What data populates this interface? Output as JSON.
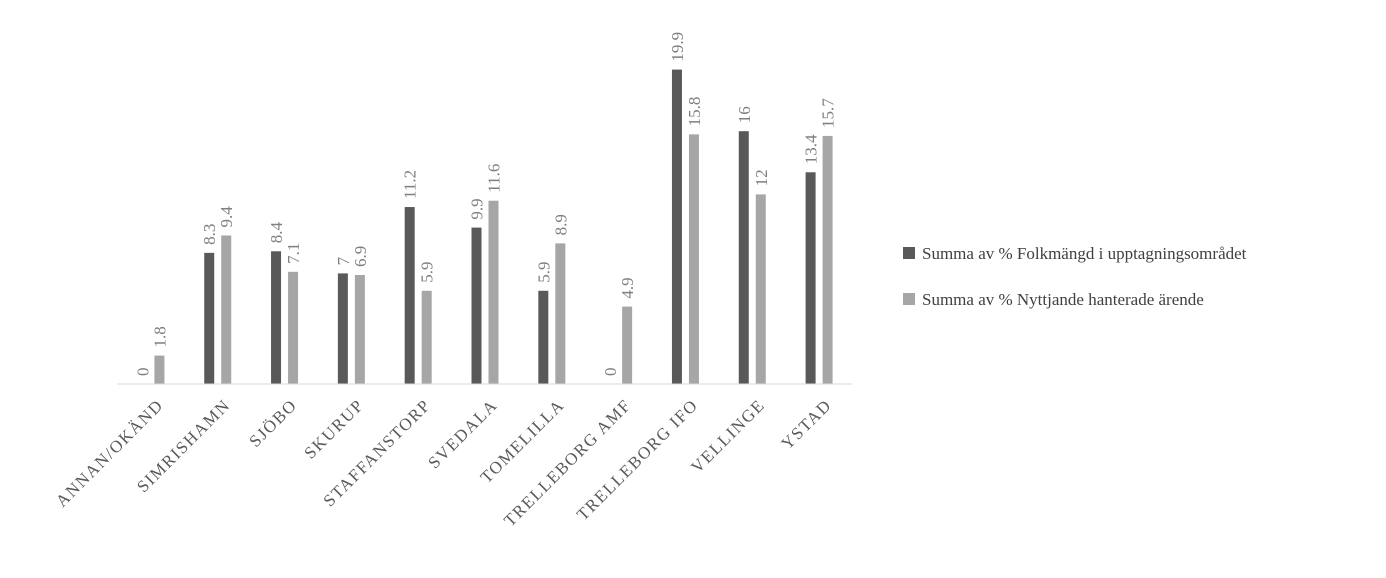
{
  "chart_data": {
    "type": "bar",
    "title": "",
    "xlabel": "",
    "ylabel": "",
    "ylim": [
      0,
      20
    ],
    "grid": false,
    "legend_position": "right",
    "categories": [
      "ANNAN/OKÄND",
      "SIMRISHAMN",
      "SJÖBO",
      "SKURUP",
      "STAFFANSTORP",
      "SVEDALA",
      "TOMELILLA",
      "TRELLEBORG AMF",
      "TRELLEBORG IFO",
      "VELLINGE",
      "YSTAD"
    ],
    "series": [
      {
        "name": "Summa av % Folkmängd i upptagningsområdet",
        "color": "#595959",
        "values": [
          0,
          8.3,
          8.4,
          7,
          11.2,
          9.9,
          5.9,
          0,
          19.9,
          16,
          13.4
        ]
      },
      {
        "name": "Summa av % Nyttjande hanterade ärende",
        "color": "#a6a6a6",
        "values": [
          1.8,
          9.4,
          7.1,
          6.9,
          5.9,
          11.6,
          8.9,
          4.9,
          15.8,
          12,
          15.7
        ]
      }
    ]
  }
}
